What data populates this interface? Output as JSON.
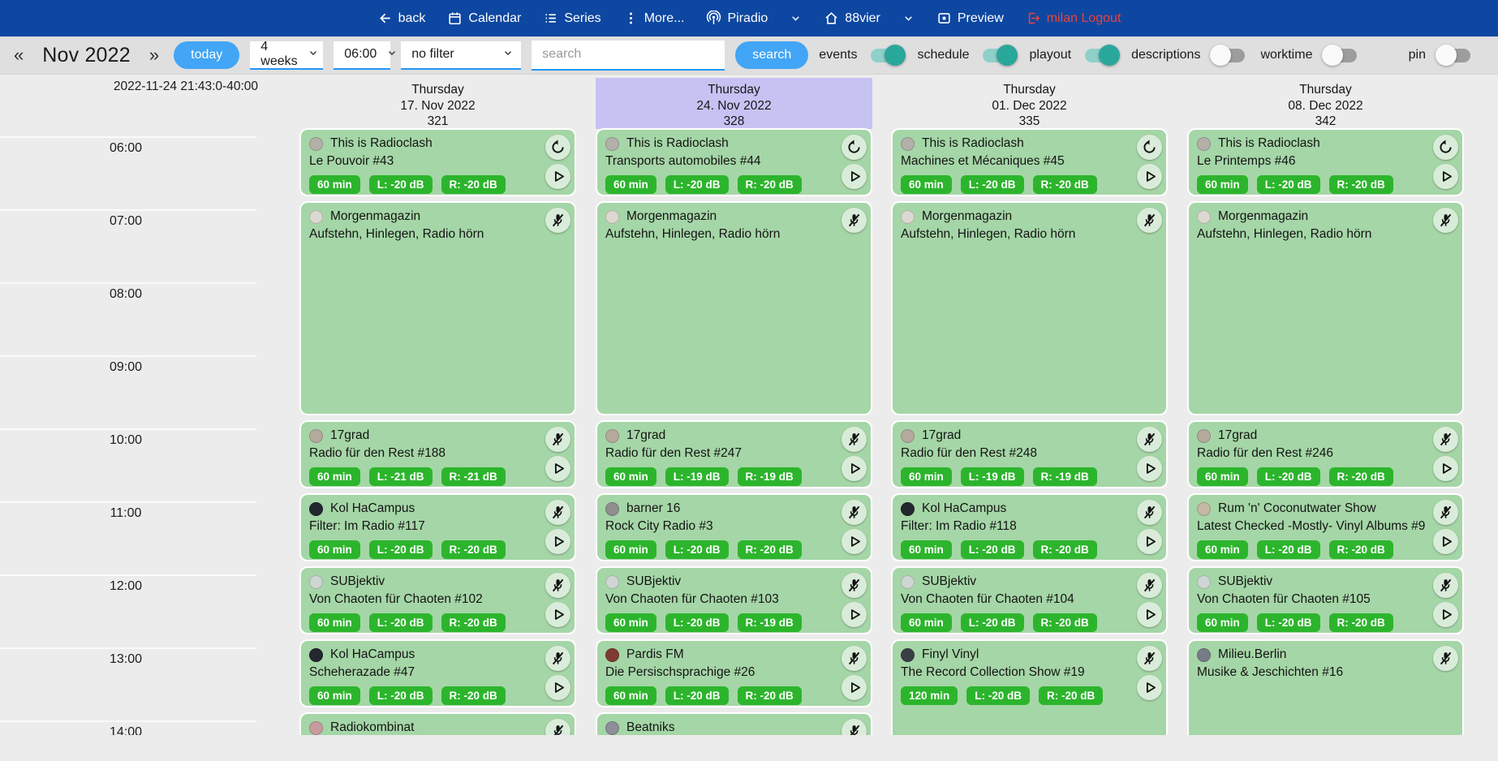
{
  "navbar": {
    "items": [
      {
        "id": "back",
        "icon": "arrow-left",
        "label": "back"
      },
      {
        "id": "calendar",
        "icon": "calendar",
        "label": "Calendar"
      },
      {
        "id": "series",
        "icon": "list",
        "label": "Series"
      },
      {
        "id": "more",
        "icon": "more-vert",
        "label": "More..."
      },
      {
        "id": "piradio",
        "icon": "antenna",
        "label": "Piradio"
      },
      {
        "id": "piradio-dropdown",
        "icon": "chevron-down",
        "label": ""
      },
      {
        "id": "station",
        "icon": "home",
        "label": "88vier"
      },
      {
        "id": "station-dropdown",
        "icon": "chevron-down",
        "label": ""
      },
      {
        "id": "preview",
        "icon": "display",
        "label": "Preview"
      },
      {
        "id": "logout",
        "icon": "logout",
        "label": "milan Logout",
        "style": "danger"
      }
    ]
  },
  "toolbar": {
    "prev_label": "«",
    "month_label": "Nov 2022",
    "next_label": "»",
    "today_label": "today",
    "range_value": "4 weeks",
    "time_value": "06:00",
    "filter_value": "no filter",
    "search_placeholder": "search",
    "search_button_label": "search",
    "toggles": [
      {
        "id": "events",
        "label": "events",
        "on": true
      },
      {
        "id": "schedule",
        "label": "schedule",
        "on": true
      },
      {
        "id": "playout",
        "label": "playout",
        "on": true
      },
      {
        "id": "descriptions",
        "label": "descriptions",
        "on": false
      },
      {
        "id": "worktime",
        "label": "worktime",
        "on": false
      },
      {
        "id": "pin",
        "label": "pin",
        "on": false
      }
    ]
  },
  "colors": {
    "navbar_bg": "#0d47a1",
    "accent_blue": "#42a5f5",
    "toggle_on": "#2aa79b",
    "event_bg": "#a5d6a7",
    "badge_green": "#2cb52c",
    "highlight_header": "#c6c3f3",
    "logout_red": "#e8433e"
  },
  "calendar": {
    "timestamp": "2022-11-24 21:43:0-40:00",
    "hours": [
      "06:00",
      "07:00",
      "08:00",
      "09:00",
      "10:00",
      "11:00",
      "12:00",
      "13:00",
      "14:00"
    ],
    "days": [
      {
        "weekday": "Thursday",
        "date": "17. Nov 2022",
        "number": "321",
        "highlight": false,
        "events": [
          {
            "show": "This is Radioclash",
            "episode": "Le Pouvoir #43",
            "slot": 0,
            "hours": 1,
            "badges": [
              "60 min",
              "L: -20 dB",
              "R: -20 dB"
            ],
            "actions": [
              "restart",
              "play"
            ],
            "avatar": "#b3b0a9"
          },
          {
            "show": "Morgenmagazin",
            "episode": "Aufstehn, Hinlegen, Radio hörn",
            "slot": 1,
            "hours": 3,
            "badges": [],
            "actions": [
              "mic-off"
            ],
            "avatar": "#dcd9d0"
          },
          {
            "show": "17grad",
            "episode": "Radio für den Rest #188",
            "slot": 4,
            "hours": 1,
            "badges": [
              "60 min",
              "L: -21 dB",
              "R: -21 dB"
            ],
            "actions": [
              "mic-off",
              "play"
            ],
            "avatar": "#b5aa9b"
          },
          {
            "show": "Kol HaCampus",
            "episode": "Filter: Im Radio #117",
            "slot": 5,
            "hours": 1,
            "badges": [
              "60 min",
              "L: -20 dB",
              "R: -20 dB"
            ],
            "actions": [
              "mic-off",
              "play"
            ],
            "avatar": "#23272e"
          },
          {
            "show": "SUBjektiv",
            "episode": "Von Chaoten für Chaoten #102",
            "slot": 6,
            "hours": 1,
            "badges": [
              "60 min",
              "L: -20 dB",
              "R: -20 dB"
            ],
            "actions": [
              "mic-off",
              "play"
            ],
            "avatar": "#cdd6d3"
          },
          {
            "show": "Kol HaCampus",
            "episode": "Scheherazade #47",
            "slot": 7,
            "hours": 1,
            "badges": [
              "60 min",
              "L: -20 dB",
              "R: -20 dB"
            ],
            "actions": [
              "mic-off",
              "play"
            ],
            "avatar": "#23272e"
          },
          {
            "show": "Radiokombinat",
            "episode": "",
            "slot": 8,
            "hours": 1,
            "badges": [],
            "actions": [
              "mic-off"
            ],
            "avatar": "#c79ba0"
          }
        ]
      },
      {
        "weekday": "Thursday",
        "date": "24. Nov 2022",
        "number": "328",
        "highlight": true,
        "events": [
          {
            "show": "This is Radioclash",
            "episode": "Transports automobiles #44",
            "slot": 0,
            "hours": 1,
            "badges": [
              "60 min",
              "L: -20 dB",
              "R: -20 dB"
            ],
            "actions": [
              "restart",
              "play"
            ],
            "avatar": "#b3b0a9"
          },
          {
            "show": "Morgenmagazin",
            "episode": "Aufstehn, Hinlegen, Radio hörn",
            "slot": 1,
            "hours": 3,
            "badges": [],
            "actions": [
              "mic-off"
            ],
            "avatar": "#dcd9d0"
          },
          {
            "show": "17grad",
            "episode": "Radio für den Rest #247",
            "slot": 4,
            "hours": 1,
            "badges": [
              "60 min",
              "L: -19 dB",
              "R: -19 dB"
            ],
            "actions": [
              "mic-off",
              "play"
            ],
            "avatar": "#b5aa9b"
          },
          {
            "show": "barner 16",
            "episode": "Rock City Radio #3",
            "slot": 5,
            "hours": 1,
            "badges": [
              "60 min",
              "L: -20 dB",
              "R: -20 dB"
            ],
            "actions": [
              "mic-off",
              "play"
            ],
            "avatar": "#8f8f8f"
          },
          {
            "show": "SUBjektiv",
            "episode": "Von Chaoten für Chaoten #103",
            "slot": 6,
            "hours": 1,
            "badges": [
              "60 min",
              "L: -20 dB",
              "R: -19 dB"
            ],
            "actions": [
              "mic-off",
              "play"
            ],
            "avatar": "#cdd6d3"
          },
          {
            "show": "Pardis FM",
            "episode": "Die Persischsprachige #26",
            "slot": 7,
            "hours": 1,
            "badges": [
              "60 min",
              "L: -20 dB",
              "R: -20 dB"
            ],
            "actions": [
              "mic-off",
              "play"
            ],
            "avatar": "#7e3b34"
          },
          {
            "show": "Beatniks",
            "episode": "",
            "slot": 8,
            "hours": 1,
            "badges": [],
            "actions": [
              "mic-off"
            ],
            "avatar": "#8c8f97"
          }
        ]
      },
      {
        "weekday": "Thursday",
        "date": "01. Dec 2022",
        "number": "335",
        "highlight": false,
        "events": [
          {
            "show": "This is Radioclash",
            "episode": "Machines et Mécaniques #45",
            "slot": 0,
            "hours": 1,
            "badges": [
              "60 min",
              "L: -20 dB",
              "R: -20 dB"
            ],
            "actions": [
              "restart",
              "play"
            ],
            "avatar": "#b3b0a9"
          },
          {
            "show": "Morgenmagazin",
            "episode": "Aufstehn, Hinlegen, Radio hörn",
            "slot": 1,
            "hours": 3,
            "badges": [],
            "actions": [
              "mic-off"
            ],
            "avatar": "#dcd9d0"
          },
          {
            "show": "17grad",
            "episode": "Radio für den Rest #248",
            "slot": 4,
            "hours": 1,
            "badges": [
              "60 min",
              "L: -19 dB",
              "R: -19 dB"
            ],
            "actions": [
              "mic-off",
              "play"
            ],
            "avatar": "#b5aa9b"
          },
          {
            "show": "Kol HaCampus",
            "episode": "Filter: Im Radio #118",
            "slot": 5,
            "hours": 1,
            "badges": [
              "60 min",
              "L: -20 dB",
              "R: -20 dB"
            ],
            "actions": [
              "mic-off",
              "play"
            ],
            "avatar": "#23272e"
          },
          {
            "show": "SUBjektiv",
            "episode": "Von Chaoten für Chaoten #104",
            "slot": 6,
            "hours": 1,
            "badges": [
              "60 min",
              "L: -20 dB",
              "R: -20 dB"
            ],
            "actions": [
              "mic-off",
              "play"
            ],
            "avatar": "#cdd6d3"
          },
          {
            "show": "Finyl Vinyl",
            "episode": "The Record Collection Show #19",
            "slot": 7,
            "hours": 2,
            "badges": [
              "120 min",
              "L: -20 dB",
              "R: -20 dB"
            ],
            "actions": [
              "mic-off",
              "play"
            ],
            "avatar": "#3a3f45"
          }
        ]
      },
      {
        "weekday": "Thursday",
        "date": "08. Dec 2022",
        "number": "342",
        "highlight": false,
        "events": [
          {
            "show": "This is Radioclash",
            "episode": "Le Printemps #46",
            "slot": 0,
            "hours": 1,
            "badges": [
              "60 min",
              "L: -20 dB",
              "R: -20 dB"
            ],
            "actions": [
              "restart",
              "play"
            ],
            "avatar": "#b3b0a9"
          },
          {
            "show": "Morgenmagazin",
            "episode": "Aufstehn, Hinlegen, Radio hörn",
            "slot": 1,
            "hours": 3,
            "badges": [],
            "actions": [
              "mic-off"
            ],
            "avatar": "#dcd9d0"
          },
          {
            "show": "17grad",
            "episode": "Radio für den Rest #246",
            "slot": 4,
            "hours": 1,
            "badges": [
              "60 min",
              "L: -20 dB",
              "R: -20 dB"
            ],
            "actions": [
              "mic-off",
              "play"
            ],
            "avatar": "#b5aa9b"
          },
          {
            "show": "Rum 'n' Coconutwater Show",
            "episode": "Latest Checked -Mostly- Vinyl Albums #9",
            "slot": 5,
            "hours": 1,
            "badges": [
              "60 min",
              "L: -20 dB",
              "R: -20 dB"
            ],
            "actions": [
              "mic-off",
              "play"
            ],
            "avatar": "#c4b9a4"
          },
          {
            "show": "SUBjektiv",
            "episode": "Von Chaoten für Chaoten #105",
            "slot": 6,
            "hours": 1,
            "badges": [
              "60 min",
              "L: -20 dB",
              "R: -20 dB"
            ],
            "actions": [
              "mic-off",
              "play"
            ],
            "avatar": "#cdd6d3"
          },
          {
            "show": "Milieu.Berlin",
            "episode": "Musike & Jeschichten #16",
            "slot": 7,
            "hours": 2,
            "badges": [],
            "actions": [
              "mic-off"
            ],
            "avatar": "#777d86"
          }
        ]
      }
    ]
  }
}
